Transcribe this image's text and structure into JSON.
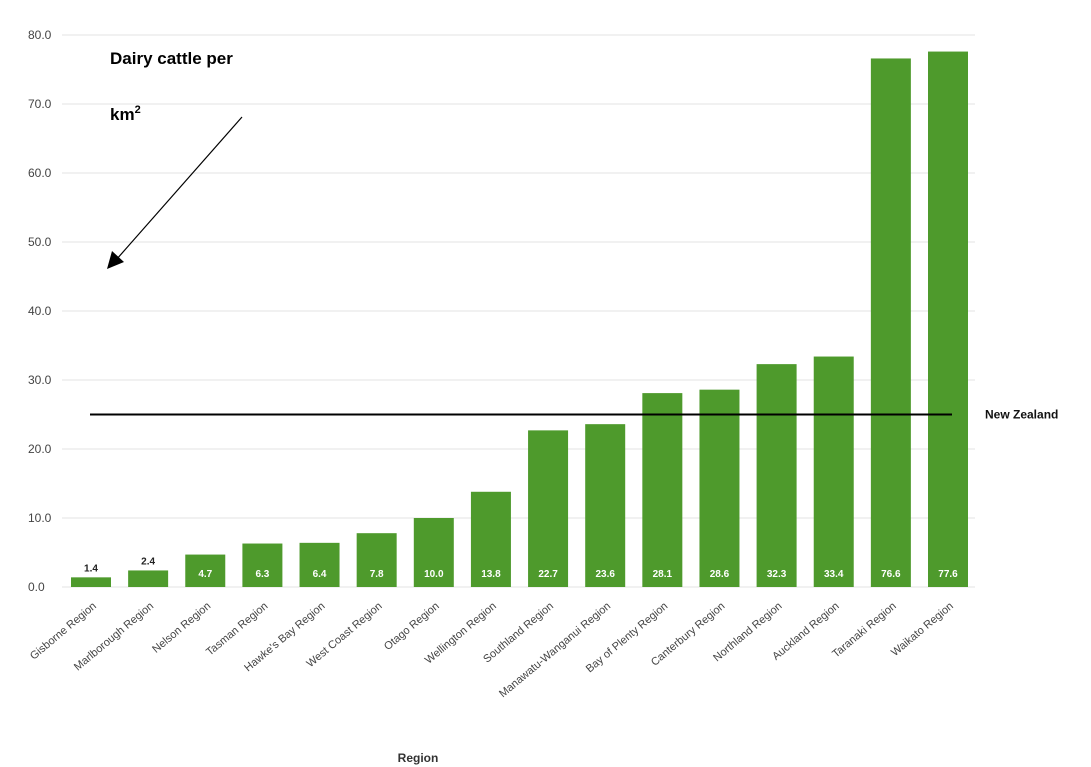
{
  "chart_data": {
    "type": "bar",
    "title": "",
    "xlabel": "Region",
    "ylabel": "",
    "ylim": [
      0,
      80
    ],
    "yticks": [
      "0.0",
      "10.0",
      "20.0",
      "30.0",
      "40.0",
      "50.0",
      "60.0",
      "70.0",
      "80.0"
    ],
    "grid": true,
    "legend": "none",
    "bar_color": "#4e9a2c",
    "categories": [
      "Gisborne Region",
      "Marlborough Region",
      "Nelson Region",
      "Tasman Region",
      "Hawke's Bay Region",
      "West Coast Region",
      "Otago Region",
      "Wellington Region",
      "Southland Region",
      "Manawatu-Wanganui Region",
      "Bay of Plenty Region",
      "Canterbury Region",
      "Northland Region",
      "Auckland Region",
      "Taranaki Region",
      "Waikato Region"
    ],
    "values": [
      1.4,
      2.4,
      4.7,
      6.3,
      6.4,
      7.8,
      10.0,
      13.8,
      22.7,
      23.6,
      28.1,
      28.6,
      32.3,
      33.4,
      76.6,
      77.6
    ],
    "data_labels": [
      "1.4",
      "2.4",
      "4.7",
      "6.3",
      "6.4",
      "7.8",
      "10.0",
      "13.8",
      "22.7",
      "23.6",
      "28.1",
      "28.6",
      "32.3",
      "33.4",
      "76.6",
      "77.6"
    ],
    "reference_line": {
      "value": 25.0,
      "label": "New Zealand",
      "color": "#000000"
    },
    "annotation": {
      "line1": "Dairy  cattle  per",
      "line2": "km",
      "superscript": "2"
    }
  }
}
